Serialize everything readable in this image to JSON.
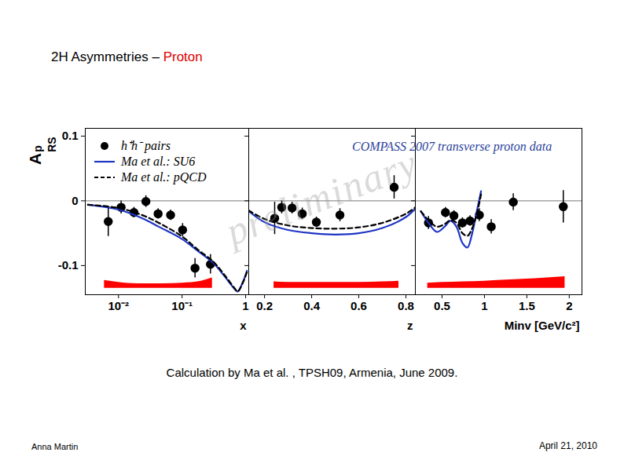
{
  "slide": {
    "title": "2H Asymmetries –",
    "title_highlight": "Proton",
    "caption": "Calculation by Ma et al. , TPSH09, Armenia, June 2009.",
    "footer_left": "Anna Martin",
    "footer_right": "April 21, 2010"
  },
  "chart_data": [
    {
      "type": "scatter",
      "ylabel": "A",
      "ylabel_sup": "p",
      "ylabel_sub": "RS",
      "xlabel": "x",
      "log": "x",
      "xlim": [
        0.003,
        1.12
      ],
      "xticks": [
        {
          "value": 0.01,
          "label": "10⁻²"
        },
        {
          "value": 0.1,
          "label": "10⁻¹"
        },
        1
      ],
      "ylim": [
        -0.145,
        0.112
      ],
      "yticks": [
        0.1,
        0,
        -0.1
      ],
      "hline": 0,
      "legend": "top-left",
      "series": [
        {
          "name": "h⁺h⁻ pairs",
          "type": "scatter",
          "marker": "circle",
          "color": "#000000",
          "x": [
            0.0069,
            0.011,
            0.0175,
            0.027,
            0.042,
            0.066,
            0.102,
            0.16,
            0.28
          ],
          "values": [
            -0.032,
            -0.01,
            -0.018,
            -0.001,
            -0.02,
            -0.022,
            -0.045,
            -0.104,
            -0.098
          ],
          "errors": [
            0.023,
            0.01,
            0.008,
            0.009,
            0.008,
            0.008,
            0.01,
            0.015,
            0.015
          ]
        },
        {
          "name": "Ma et al.: SU6",
          "type": "line",
          "line_style": "solid",
          "color": "#1f35c4",
          "x": [
            0.0033,
            0.01,
            0.025,
            0.043,
            0.1,
            0.175,
            0.31,
            0.47,
            0.67,
            0.75,
            0.9,
            1.05
          ],
          "values": [
            -0.006,
            -0.0135,
            -0.028,
            -0.04,
            -0.059,
            -0.077,
            -0.096,
            -0.117,
            -0.136,
            -0.14,
            -0.126,
            -0.108
          ]
        },
        {
          "name": "Ma et al.: pQCD",
          "type": "line",
          "line_style": "dashed",
          "color": "#000000",
          "x": [
            0.0033,
            0.01,
            0.025,
            0.043,
            0.1,
            0.175,
            0.31,
            0.47,
            0.67,
            0.75,
            0.9,
            1.05
          ],
          "values": [
            -0.006,
            -0.011,
            -0.023,
            -0.034,
            -0.055,
            -0.075,
            -0.094,
            -0.115,
            -0.135,
            -0.14,
            -0.127,
            -0.11
          ]
        }
      ],
      "systematics": {
        "color": "#ff0000",
        "base": -0.135,
        "x": [
          0.006,
          0.01,
          0.02,
          0.05,
          0.1,
          0.2,
          0.3
        ],
        "values": [
          0.012,
          0.009,
          0.007,
          0.007,
          0.008,
          0.011,
          0.016
        ]
      }
    },
    {
      "type": "scatter",
      "xlabel": "z",
      "xlim": [
        0.133,
        0.84
      ],
      "xticks": [
        0.2,
        0.4,
        0.6,
        0.8
      ],
      "ylim": [
        -0.145,
        0.112
      ],
      "yticks": [
        0.1,
        0,
        -0.1
      ],
      "tick_labels": "x",
      "hline": 0,
      "annotations": [
        "COMPASS 2007 transverse proton data",
        "preliminary"
      ],
      "series": [
        {
          "type": "scatter",
          "marker": "circle",
          "color": "#000000",
          "x": [
            0.243,
            0.273,
            0.317,
            0.36,
            0.42,
            0.52,
            0.75
          ],
          "values": [
            -0.027,
            -0.01,
            -0.011,
            -0.02,
            -0.033,
            -0.022,
            0.021
          ],
          "errors": [
            0.025,
            0.01,
            0.009,
            0.009,
            0.008,
            0.01,
            0.018
          ]
        },
        {
          "type": "line",
          "line_style": "solid",
          "color": "#1f35c4",
          "x": [
            0.133,
            0.2,
            0.3,
            0.4,
            0.5,
            0.6,
            0.7,
            0.8,
            0.84
          ],
          "values": [
            -0.016,
            -0.033,
            -0.045,
            -0.05,
            -0.052,
            -0.05,
            -0.042,
            -0.025,
            -0.012
          ]
        },
        {
          "type": "line",
          "line_style": "dashed",
          "color": "#000000",
          "x": [
            0.133,
            0.2,
            0.3,
            0.4,
            0.5,
            0.6,
            0.7,
            0.8,
            0.84
          ],
          "values": [
            -0.015,
            -0.028,
            -0.038,
            -0.042,
            -0.043,
            -0.041,
            -0.034,
            -0.02,
            -0.01
          ]
        }
      ],
      "systematics": {
        "color": "#ff0000",
        "base": -0.135,
        "x": [
          0.24,
          0.3,
          0.4,
          0.5,
          0.6,
          0.7,
          0.77
        ],
        "values": [
          0.01,
          0.009,
          0.009,
          0.009,
          0.009,
          0.01,
          0.011
        ]
      }
    },
    {
      "type": "scatter",
      "xlabel": "Minv [GeV/c²]",
      "xlim": [
        0.185,
        2.15
      ],
      "xticks": [
        0.5,
        1,
        1.5,
        2
      ],
      "ylim": [
        -0.145,
        0.112
      ],
      "yticks": [
        0.1,
        0,
        -0.1
      ],
      "tick_labels": "x",
      "hline": 0,
      "series": [
        {
          "type": "scatter",
          "marker": "circle",
          "color": "#000000",
          "x": [
            0.34,
            0.54,
            0.64,
            0.74,
            0.83,
            0.94,
            1.08,
            1.34,
            1.93
          ],
          "values": [
            -0.034,
            -0.018,
            -0.023,
            -0.034,
            -0.031,
            -0.022,
            -0.04,
            -0.002,
            -0.009
          ],
          "errors": [
            0.01,
            0.008,
            0.008,
            0.008,
            0.008,
            0.01,
            0.011,
            0.013,
            0.025
          ]
        },
        {
          "type": "line",
          "line_style": "solid",
          "color": "#1f35c4",
          "x": [
            0.25,
            0.34,
            0.44,
            0.53,
            0.6,
            0.67,
            0.74,
            0.8,
            0.85,
            0.91,
            0.96
          ],
          "values": [
            -0.016,
            -0.034,
            -0.048,
            -0.04,
            -0.031,
            -0.04,
            -0.065,
            -0.072,
            -0.053,
            -0.016,
            0.015
          ]
        },
        {
          "type": "line",
          "line_style": "dashed",
          "color": "#000000",
          "x": [
            0.25,
            0.34,
            0.44,
            0.53,
            0.6,
            0.67,
            0.74,
            0.8,
            0.85,
            0.91,
            0.96
          ],
          "values": [
            -0.016,
            -0.03,
            -0.04,
            -0.036,
            -0.03,
            -0.034,
            -0.05,
            -0.054,
            -0.044,
            -0.02,
            0.01
          ]
        }
      ],
      "systematics": {
        "color": "#ff0000",
        "base": -0.135,
        "x": [
          0.33,
          0.5,
          0.75,
          1.0,
          1.3,
          1.6,
          1.95
        ],
        "values": [
          0.008,
          0.009,
          0.01,
          0.011,
          0.013,
          0.015,
          0.018
        ]
      }
    }
  ]
}
